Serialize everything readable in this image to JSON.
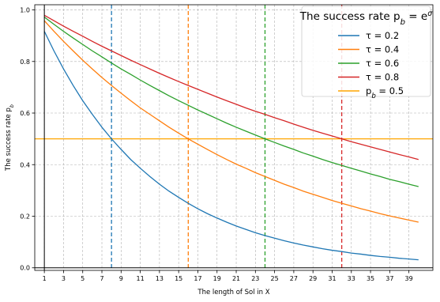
{
  "chart_data": {
    "type": "line",
    "xlabel": "The length of Sol in X",
    "ylabel": "The success rate p_b",
    "xlim": [
      0,
      41.5
    ],
    "ylim": [
      -0.01,
      1.02
    ],
    "xticks": [
      1,
      3,
      5,
      7,
      9,
      11,
      13,
      15,
      17,
      19,
      21,
      23,
      25,
      27,
      29,
      31,
      33,
      35,
      37,
      39
    ],
    "yticks": [
      0.0,
      0.2,
      0.4,
      0.6,
      0.8,
      1.0
    ],
    "ytick_labels": [
      "0.0",
      "0.2",
      "0.4",
      "0.6",
      "0.8",
      "1.0"
    ],
    "grid": true,
    "legend": {
      "title": "The success rate p_b = e^σ",
      "placement": "top-right"
    },
    "x": [
      1,
      2,
      3,
      4,
      5,
      6,
      7,
      8,
      9,
      10,
      11,
      12,
      13,
      14,
      15,
      16,
      17,
      18,
      19,
      20,
      21,
      22,
      23,
      24,
      25,
      26,
      27,
      28,
      29,
      30,
      31,
      32,
      33,
      34,
      35,
      36,
      37,
      38,
      39,
      40
    ],
    "series": [
      {
        "name": "τ = 0.2",
        "color": "#1f77b4",
        "values": [
          0.917,
          0.841,
          0.771,
          0.707,
          0.648,
          0.595,
          0.545,
          0.5,
          0.459,
          0.42,
          0.386,
          0.354,
          0.324,
          0.297,
          0.273,
          0.25,
          0.229,
          0.21,
          0.193,
          0.177,
          0.162,
          0.149,
          0.136,
          0.125,
          0.115,
          0.105,
          0.096,
          0.088,
          0.081,
          0.074,
          0.068,
          0.063,
          0.057,
          0.053,
          0.048,
          0.044,
          0.041,
          0.037,
          0.034,
          0.031
        ]
      },
      {
        "name": "τ = 0.4",
        "color": "#ff7f0e",
        "values": [
          0.958,
          0.917,
          0.878,
          0.841,
          0.805,
          0.771,
          0.738,
          0.707,
          0.677,
          0.648,
          0.62,
          0.595,
          0.57,
          0.545,
          0.522,
          0.5,
          0.479,
          0.459,
          0.439,
          0.42,
          0.402,
          0.386,
          0.369,
          0.354,
          0.339,
          0.324,
          0.311,
          0.297,
          0.285,
          0.273,
          0.261,
          0.25,
          0.24,
          0.229,
          0.22,
          0.21,
          0.201,
          0.193,
          0.185,
          0.177
        ]
      },
      {
        "name": "τ = 0.6",
        "color": "#2ca02c",
        "values": [
          0.972,
          0.944,
          0.917,
          0.891,
          0.866,
          0.841,
          0.818,
          0.794,
          0.771,
          0.75,
          0.728,
          0.707,
          0.687,
          0.667,
          0.648,
          0.63,
          0.612,
          0.595,
          0.578,
          0.561,
          0.545,
          0.53,
          0.515,
          0.5,
          0.486,
          0.472,
          0.459,
          0.445,
          0.433,
          0.42,
          0.408,
          0.397,
          0.386,
          0.375,
          0.364,
          0.354,
          0.343,
          0.334,
          0.324,
          0.315
        ]
      },
      {
        "name": "τ = 0.8",
        "color": "#d62728",
        "values": [
          0.979,
          0.958,
          0.937,
          0.917,
          0.898,
          0.878,
          0.859,
          0.841,
          0.823,
          0.805,
          0.788,
          0.771,
          0.754,
          0.738,
          0.722,
          0.707,
          0.692,
          0.677,
          0.662,
          0.648,
          0.634,
          0.62,
          0.607,
          0.595,
          0.582,
          0.57,
          0.557,
          0.545,
          0.533,
          0.522,
          0.511,
          0.5,
          0.489,
          0.479,
          0.469,
          0.459,
          0.449,
          0.439,
          0.43,
          0.42
        ]
      }
    ],
    "hline": {
      "name": "p_b = 0.5",
      "y": 0.5,
      "color": "#ffa500"
    },
    "vlines": [
      {
        "x": 8,
        "color": "#1f77b4"
      },
      {
        "x": 16,
        "color": "#ff7f0e"
      },
      {
        "x": 24,
        "color": "#2ca02c"
      },
      {
        "x": 32,
        "color": "#d62728"
      }
    ]
  }
}
